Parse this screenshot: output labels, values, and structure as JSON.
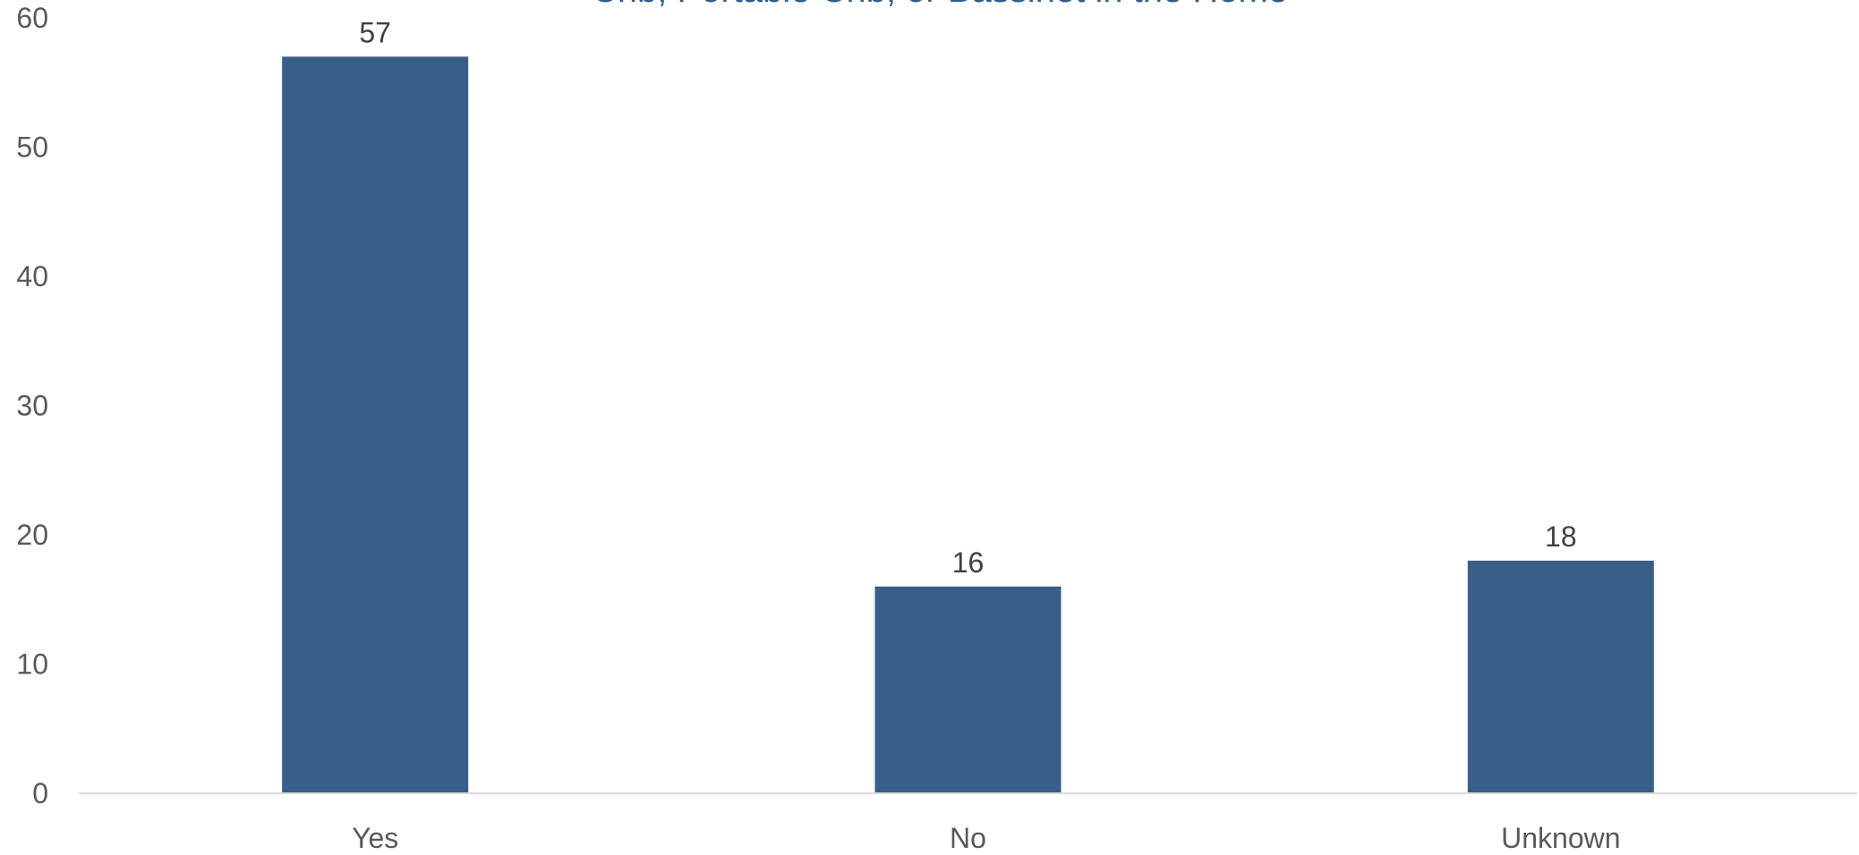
{
  "chart_data": {
    "type": "bar",
    "title": "Crib, Portable Crib, or Bassinet in the Home",
    "xlabel": "",
    "ylabel": "",
    "categories": [
      "Yes",
      "No",
      "Unknown"
    ],
    "values": [
      57,
      16,
      18
    ],
    "ylim": [
      0,
      60
    ],
    "yticks": [
      0,
      10,
      20,
      30,
      40,
      50,
      60
    ],
    "data_labels": [
      "57",
      "16",
      "18"
    ],
    "grid": false,
    "legend": "none",
    "bar_color": "#375f88",
    "axis_color": "#d9d9d9"
  }
}
